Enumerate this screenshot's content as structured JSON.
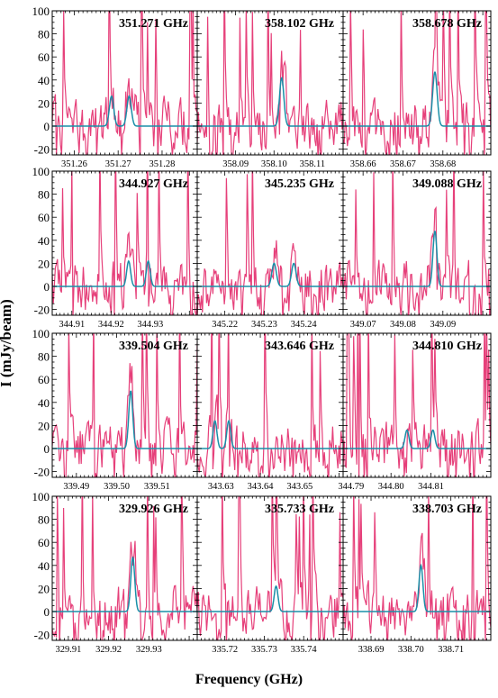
{
  "figure": {
    "ylabel": "I (mJy/beam)",
    "xlabel": "Frequency (GHz)",
    "colors": {
      "observed": "#e6407a",
      "model": "#1a8fa8",
      "axes": "#000000"
    },
    "yticks": [
      "100",
      "80",
      "60",
      "40",
      "20",
      "0",
      "-20"
    ]
  },
  "chart_data": [
    {
      "type": "line",
      "title": "351.271 GHz",
      "xlim": [
        351.255,
        351.288
      ],
      "ylim": [
        -25,
        100
      ],
      "xticks": [
        "351.26",
        "351.27",
        "351.28"
      ],
      "model_peaks": [
        {
          "center": 351.2685,
          "height": 26,
          "width": 0.0007
        },
        {
          "center": 351.2725,
          "height": 26,
          "width": 0.0007
        }
      ]
    },
    {
      "type": "line",
      "title": "358.102 GHz",
      "xlim": [
        358.08,
        358.118
      ],
      "ylim": [
        -25,
        100
      ],
      "xticks": [
        "358.09",
        "358.10",
        "358.11"
      ],
      "model_peaks": [
        {
          "center": 358.102,
          "height": 42,
          "width": 0.0008
        }
      ]
    },
    {
      "type": "line",
      "title": "358.678 GHz",
      "xlim": [
        358.655,
        358.692
      ],
      "ylim": [
        -25,
        100
      ],
      "xticks": [
        "358.66",
        "358.67",
        "358.68"
      ],
      "model_peaks": [
        {
          "center": 358.678,
          "height": 47,
          "width": 0.0008
        }
      ]
    },
    {
      "type": "line",
      "title": "344.927 GHz",
      "xlim": [
        344.905,
        344.942
      ],
      "ylim": [
        -25,
        100
      ],
      "xticks": [
        "344.91",
        "344.92",
        "344.93"
      ],
      "model_peaks": [
        {
          "center": 344.9245,
          "height": 22,
          "width": 0.0007
        },
        {
          "center": 344.9295,
          "height": 22,
          "width": 0.0007
        }
      ]
    },
    {
      "type": "line",
      "title": "345.235 GHz",
      "xlim": [
        345.213,
        345.25
      ],
      "ylim": [
        -25,
        100
      ],
      "xticks": [
        "345.22",
        "345.23",
        "345.24"
      ],
      "model_peaks": [
        {
          "center": 345.2325,
          "height": 20,
          "width": 0.0008
        },
        {
          "center": 345.2375,
          "height": 20,
          "width": 0.0008
        }
      ]
    },
    {
      "type": "line",
      "title": "349.088 GHz",
      "xlim": [
        349.065,
        349.102
      ],
      "ylim": [
        -25,
        100
      ],
      "xticks": [
        "349.07",
        "349.08",
        "349.09"
      ],
      "model_peaks": [
        {
          "center": 349.088,
          "height": 48,
          "width": 0.0007
        }
      ]
    },
    {
      "type": "line",
      "title": "339.504 GHz",
      "xlim": [
        339.484,
        339.52
      ],
      "ylim": [
        -25,
        100
      ],
      "xticks": [
        "339.49",
        "339.50",
        "339.51"
      ],
      "model_peaks": [
        {
          "center": 339.5035,
          "height": 50,
          "width": 0.0007
        }
      ]
    },
    {
      "type": "line",
      "title": "343.646 GHz",
      "xlim": [
        343.624,
        343.661
      ],
      "ylim": [
        -25,
        100
      ],
      "xticks": [
        "343.63",
        "343.64",
        "343.65"
      ],
      "model_peaks": [
        {
          "center": 343.6285,
          "height": 24,
          "width": 0.0007
        },
        {
          "center": 343.632,
          "height": 24,
          "width": 0.0007
        }
      ]
    },
    {
      "type": "line",
      "title": "344.810 GHz",
      "xlim": [
        344.788,
        344.825
      ],
      "ylim": [
        -25,
        100
      ],
      "xticks": [
        "344.79",
        "344.80",
        "344.81"
      ],
      "model_peaks": [
        {
          "center": 344.804,
          "height": 16,
          "width": 0.0007
        },
        {
          "center": 344.8105,
          "height": 16,
          "width": 0.0007
        }
      ]
    },
    {
      "type": "line",
      "title": "329.926 GHz",
      "xlim": [
        329.906,
        329.942
      ],
      "ylim": [
        -25,
        100
      ],
      "xticks": [
        "329.91",
        "329.92",
        "329.93"
      ],
      "model_peaks": [
        {
          "center": 329.926,
          "height": 47,
          "width": 0.0007
        }
      ]
    },
    {
      "type": "line",
      "title": "335.733 GHz",
      "xlim": [
        335.713,
        335.75
      ],
      "ylim": [
        -25,
        100
      ],
      "xticks": [
        "335.72",
        "335.73",
        "335.74"
      ],
      "model_peaks": [
        {
          "center": 335.733,
          "height": 22,
          "width": 0.0007
        }
      ]
    },
    {
      "type": "line",
      "title": "338.703 GHz",
      "xlim": [
        338.683,
        338.72
      ],
      "ylim": [
        -25,
        100
      ],
      "xticks": [
        "338.69",
        "338.70",
        "338.71"
      ],
      "model_peaks": [
        {
          "center": 338.7025,
          "height": 40,
          "width": 0.0007
        }
      ]
    }
  ]
}
